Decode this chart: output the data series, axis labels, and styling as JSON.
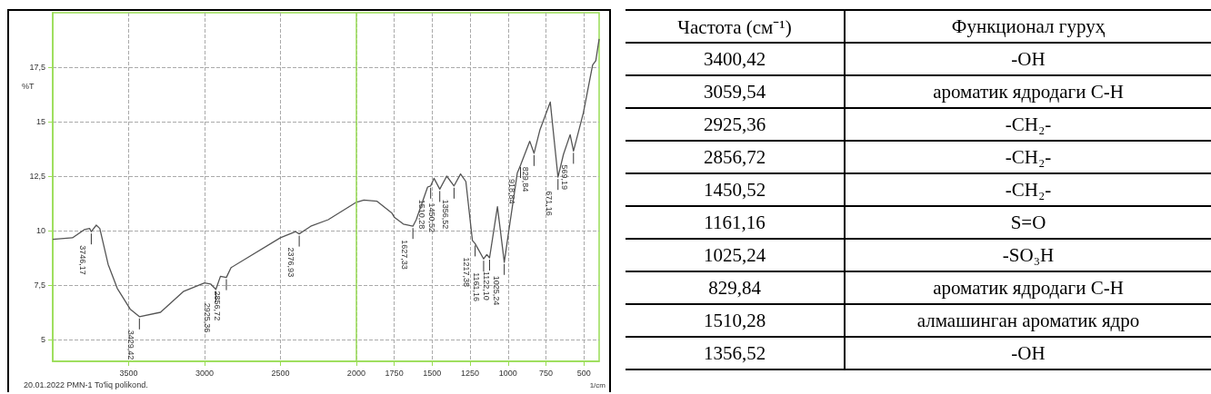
{
  "chart_data": [
    {
      "type": "line",
      "ylabel": "%T",
      "xlabel": "1/cm",
      "x": [
        4000,
        3870,
        3790,
        3757,
        3746,
        3713,
        3690,
        3635,
        3575,
        3490,
        3429,
        3290,
        3140,
        3000,
        2960,
        2925,
        2895,
        2856,
        2825,
        2500,
        2400,
        2376,
        2300,
        2185,
        2000,
        1950,
        1865,
        1765,
        1748,
        1690,
        1627,
        1605,
        1530,
        1510,
        1488,
        1450,
        1404,
        1356,
        1313,
        1278,
        1235,
        1217,
        1161,
        1140,
        1122,
        1070,
        1025,
        996,
        939,
        918,
        857,
        829,
        791,
        722,
        671,
        635,
        591,
        569,
        504,
        443,
        422,
        400
      ],
      "series": [
        {
          "color": "#555555",
          "values": [
            9.6,
            9.67,
            10.05,
            10.1,
            9.95,
            10.25,
            10.1,
            8.45,
            7.35,
            6.4,
            6.05,
            6.25,
            7.2,
            7.6,
            7.55,
            7.3,
            7.9,
            7.85,
            8.3,
            9.67,
            9.95,
            9.85,
            10.2,
            10.5,
            11.3,
            11.4,
            11.35,
            10.8,
            10.6,
            10.3,
            10.2,
            10.5,
            12.0,
            12.05,
            12.4,
            11.9,
            12.5,
            12.05,
            12.6,
            12.25,
            9.55,
            9.4,
            8.7,
            8.9,
            8.75,
            11.1,
            8.55,
            9.95,
            12.65,
            13.0,
            14.1,
            13.55,
            14.6,
            15.9,
            12.45,
            13.5,
            14.4,
            13.65,
            15.4,
            17.6,
            17.8,
            18.8
          ]
        }
      ],
      "xlim": [
        4000,
        400
      ],
      "ylim": [
        4,
        20
      ],
      "xticks": [
        3500,
        3000,
        2500,
        2000,
        1750,
        1500,
        1250,
        1000,
        750,
        500
      ],
      "yticks": [
        5,
        {
          "value": 7.5,
          "label": "7,5"
        },
        10,
        {
          "value": 12.5,
          "label": "12,5"
        },
        15,
        {
          "value": 17.5,
          "label": "17,5"
        }
      ],
      "grid": true,
      "line_style": "solid",
      "marker": "none",
      "ref_lines": [
        {
          "axis": "x",
          "value": 2000,
          "color": "#99dd55",
          "line_style": "solid"
        }
      ],
      "annotations": [
        {
          "text": "3746,17",
          "x": 3746,
          "y": 9.95
        },
        {
          "text": "3429,42",
          "x": 3429,
          "y": 6.05
        },
        {
          "text": "2925,36",
          "x": 2925,
          "y": 7.3
        },
        {
          "text": "2856,72",
          "x": 2856,
          "y": 7.85
        },
        {
          "text": "2376,93",
          "x": 2376,
          "y": 9.85
        },
        {
          "text": "1627,33",
          "x": 1627,
          "y": 10.2
        },
        {
          "text": "1510,28",
          "x": 1510,
          "y": 12.05
        },
        {
          "text": "1450,52",
          "x": 1450,
          "y": 11.9
        },
        {
          "text": "1356,52",
          "x": 1356,
          "y": 12.05
        },
        {
          "text": "1217,38",
          "x": 1217,
          "y": 9.4
        },
        {
          "text": "1161,16",
          "x": 1161,
          "y": 8.7
        },
        {
          "text": "1122,10",
          "x": 1122,
          "y": 8.75
        },
        {
          "text": "1025,24",
          "x": 1025,
          "y": 8.55
        },
        {
          "text": "918,84",
          "x": 918,
          "y": 13.0
        },
        {
          "text": "829,84",
          "x": 829,
          "y": 13.55
        },
        {
          "text": "671,16",
          "x": 671,
          "y": 12.45
        },
        {
          "text": "569,19",
          "x": 569,
          "y": 13.65
        },
        "20.01.2022 PMN-1 To'liq polikond."
      ]
    },
    {
      "type": "other",
      "categories": [
        "Частота (см⁻¹)",
        "Функционал гуруҳ"
      ],
      "cell_labels": [
        [
          "3400,42",
          "-OH"
        ],
        [
          "3059,54",
          "ароматик ядродаги C-H"
        ],
        [
          "2925,36",
          "-CH₂-"
        ],
        [
          "2856,72",
          "-CH₂-"
        ],
        [
          "1450,52",
          "-CH₂-"
        ],
        [
          "1161,16",
          "S=O"
        ],
        [
          "1025,24",
          "-SO₃H"
        ],
        [
          "829,84",
          "ароматик ядродаги C-H"
        ],
        [
          "1510,28",
          "алмашинган ароматик ядро"
        ],
        [
          "1356,52",
          "-OH"
        ]
      ]
    }
  ]
}
